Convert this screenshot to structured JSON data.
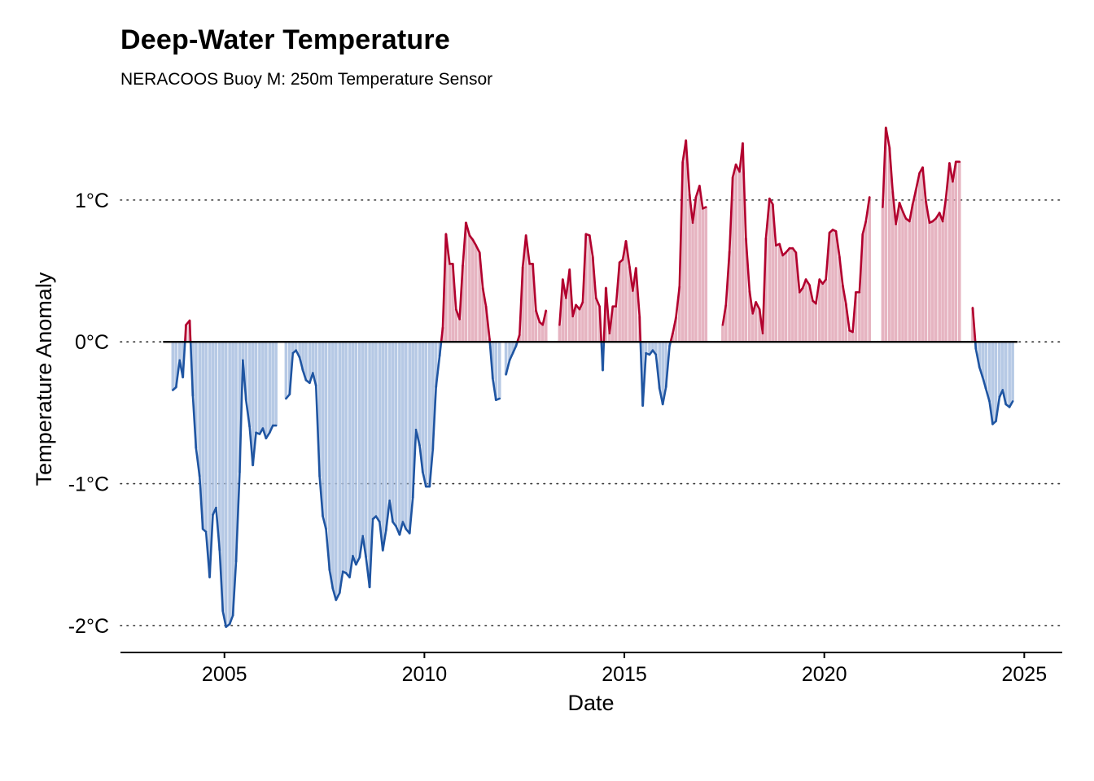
{
  "title": "Deep-Water Temperature",
  "subtitle": "NERACOOS Buoy M: 250m Temperature Sensor",
  "colors": {
    "above": "#b2002e",
    "below": "#1f55a2",
    "above_fill": "#e2a7b6",
    "below_fill": "#a9c0e0",
    "zero_line": "#000000",
    "grid": "#333333"
  },
  "chart_data": {
    "type": "area",
    "title": "Deep-Water Temperature",
    "subtitle": "NERACOOS Buoy M: 250m Temperature Sensor",
    "xlabel": "Date",
    "ylabel": "Temperature Anomaly",
    "x_unit": "decimal year",
    "xlim": [
      2002.4,
      2025.95
    ],
    "ylim": [
      -2.19,
      1.55
    ],
    "x_ticks": [
      2005,
      2010,
      2015,
      2020,
      2025
    ],
    "x_tick_labels": [
      "2005",
      "2010",
      "2015",
      "2020",
      "2025"
    ],
    "y_ticks": [
      -2,
      -1,
      0,
      1
    ],
    "y_tick_labels": [
      "-2°C",
      "-1°C",
      "0°C",
      "1°C"
    ],
    "grid": "horizontal dotted",
    "legend": "none",
    "segments": [
      {
        "x": [
          2003.71,
          2003.79,
          2003.88,
          2003.96,
          2004.04,
          2004.13,
          2004.21,
          2004.29,
          2004.38,
          2004.46,
          2004.54,
          2004.63,
          2004.71,
          2004.79,
          2004.88,
          2004.96,
          2005.04,
          2005.13,
          2005.21,
          2005.29,
          2005.38,
          2005.46,
          2005.54,
          2005.63,
          2005.71,
          2005.79,
          2005.88,
          2005.96,
          2006.04,
          2006.13,
          2006.21,
          2006.29
        ],
        "y": [
          -0.34,
          -0.32,
          -0.13,
          -0.25,
          0.12,
          0.15,
          -0.38,
          -0.75,
          -0.95,
          -1.32,
          -1.34,
          -1.66,
          -1.22,
          -1.17,
          -1.47,
          -1.9,
          -2.01,
          -1.99,
          -1.93,
          -1.55,
          -0.92,
          -0.13,
          -0.41,
          -0.6,
          -0.87,
          -0.64,
          -0.65,
          -0.61,
          -0.68,
          -0.64,
          -0.59,
          -0.59
        ]
      },
      {
        "x": [
          2006.54,
          2006.63,
          2006.71,
          2006.79,
          2006.88,
          2006.96,
          2007.04,
          2007.13,
          2007.21,
          2007.29,
          2007.38,
          2007.46,
          2007.54,
          2007.63,
          2007.71,
          2007.79,
          2007.88,
          2007.96,
          2008.04,
          2008.13,
          2008.21,
          2008.29,
          2008.38,
          2008.46,
          2008.54,
          2008.63,
          2008.71,
          2008.79,
          2008.88,
          2008.96,
          2009.04,
          2009.13,
          2009.21,
          2009.29,
          2009.38,
          2009.46,
          2009.54,
          2009.63,
          2009.71,
          2009.79,
          2009.88,
          2009.96,
          2010.04,
          2010.13,
          2010.21,
          2010.29,
          2010.38,
          2010.46,
          2010.54,
          2010.63,
          2010.71,
          2010.79,
          2010.88,
          2010.96,
          2011.04,
          2011.13,
          2011.21,
          2011.29,
          2011.38,
          2011.46,
          2011.54,
          2011.63,
          2011.71,
          2011.79,
          2011.88
        ],
        "y": [
          -0.4,
          -0.37,
          -0.08,
          -0.06,
          -0.11,
          -0.2,
          -0.27,
          -0.29,
          -0.22,
          -0.31,
          -0.95,
          -1.23,
          -1.32,
          -1.61,
          -1.74,
          -1.82,
          -1.77,
          -1.62,
          -1.63,
          -1.66,
          -1.51,
          -1.57,
          -1.52,
          -1.37,
          -1.52,
          -1.73,
          -1.25,
          -1.23,
          -1.27,
          -1.47,
          -1.33,
          -1.12,
          -1.27,
          -1.3,
          -1.36,
          -1.27,
          -1.32,
          -1.35,
          -1.1,
          -0.62,
          -0.73,
          -0.92,
          -1.02,
          -1.02,
          -0.76,
          -0.32,
          -0.1,
          0.1,
          0.76,
          0.55,
          0.55,
          0.23,
          0.16,
          0.54,
          0.84,
          0.75,
          0.72,
          0.68,
          0.63,
          0.38,
          0.25,
          0.02,
          -0.26,
          -0.41,
          -0.4
        ]
      },
      {
        "x": [
          2012.04,
          2012.13,
          2012.21,
          2012.29,
          2012.38,
          2012.46,
          2012.54,
          2012.63,
          2012.71,
          2012.79,
          2012.88,
          2012.96,
          2013.04,
          2013.13
        ],
        "y": [
          -0.23,
          -0.13,
          -0.08,
          -0.03,
          0.05,
          0.53,
          0.75,
          0.55,
          0.55,
          0.22,
          0.14,
          0.12,
          0.22,
          null
        ]
      },
      {
        "x": [
          2013.38,
          2013.46,
          2013.54,
          2013.63,
          2013.71,
          2013.79,
          2013.88,
          2013.96,
          2014.04,
          2014.13,
          2014.21,
          2014.29,
          2014.38,
          2014.46,
          2014.54,
          2014.63,
          2014.71,
          2014.79,
          2014.88,
          2014.96,
          2015.04,
          2015.13,
          2015.21,
          2015.29,
          2015.38,
          2015.46,
          2015.54,
          2015.63,
          2015.71,
          2015.79,
          2015.88,
          2015.96,
          2016.04,
          2016.13,
          2016.21,
          2016.29,
          2016.38,
          2016.46,
          2016.54,
          2016.63,
          2016.71,
          2016.79,
          2016.88,
          2016.96,
          2017.04,
          2017.13
        ],
        "y": [
          0.12,
          0.44,
          0.31,
          0.51,
          0.18,
          0.26,
          0.23,
          0.28,
          0.76,
          0.75,
          0.6,
          0.31,
          0.25,
          -0.2,
          0.38,
          0.06,
          0.25,
          0.25,
          0.56,
          0.58,
          0.71,
          0.53,
          0.36,
          0.52,
          0.18,
          -0.45,
          -0.08,
          -0.09,
          -0.06,
          -0.09,
          -0.33,
          -0.44,
          -0.32,
          -0.03,
          0.06,
          0.17,
          0.39,
          1.27,
          1.42,
          1.04,
          0.84,
          1.02,
          1.1,
          0.94,
          0.95,
          null
        ]
      },
      {
        "x": [
          2017.46,
          2017.54,
          2017.63,
          2017.71,
          2017.79,
          2017.88,
          2017.96,
          2018.04,
          2018.13,
          2018.21,
          2018.29,
          2018.38,
          2018.46,
          2018.54,
          2018.63,
          2018.71,
          2018.79,
          2018.88,
          2018.96,
          2019.04,
          2019.13,
          2019.21,
          2019.29,
          2019.38,
          2019.46,
          2019.54,
          2019.63,
          2019.71,
          2019.79,
          2019.88,
          2019.96,
          2020.04,
          2020.13,
          2020.21,
          2020.29,
          2020.38,
          2020.46,
          2020.54,
          2020.63,
          2020.71,
          2020.79,
          2020.88,
          2020.96,
          2021.04,
          2021.13,
          2021.21,
          2021.29
        ],
        "y": [
          0.12,
          0.26,
          0.64,
          1.16,
          1.25,
          1.2,
          1.4,
          0.73,
          0.36,
          0.2,
          0.28,
          0.23,
          0.06,
          0.73,
          1.01,
          0.97,
          0.68,
          0.69,
          0.61,
          0.63,
          0.66,
          0.66,
          0.63,
          0.35,
          0.38,
          0.44,
          0.4,
          0.29,
          0.27,
          0.44,
          0.41,
          0.44,
          0.77,
          0.79,
          0.78,
          0.6,
          0.4,
          0.27,
          0.08,
          0.07,
          0.35,
          0.35,
          0.76,
          0.85,
          1.02,
          null,
          null
        ]
      },
      {
        "x": [
          2021.46,
          2021.54,
          2021.63,
          2021.71,
          2021.79,
          2021.88,
          2021.96,
          2022.04,
          2022.13,
          2022.21,
          2022.29,
          2022.38,
          2022.46,
          2022.54,
          2022.63,
          2022.71,
          2022.79,
          2022.88,
          2022.96,
          2023.04,
          2023.13,
          2023.21,
          2023.29,
          2023.38
        ],
        "y": [
          0.95,
          1.51,
          1.37,
          1.06,
          0.83,
          0.98,
          0.92,
          0.87,
          0.85,
          0.97,
          1.07,
          1.19,
          1.23,
          0.99,
          0.84,
          0.85,
          0.87,
          0.91,
          0.85,
          1.01,
          1.26,
          1.13,
          1.27,
          1.27
        ]
      },
      {
        "x": [
          2023.71,
          2023.79,
          2023.88,
          2023.96,
          2024.04,
          2024.13,
          2024.21,
          2024.29,
          2024.38,
          2024.46,
          2024.54,
          2024.63,
          2024.71
        ],
        "y": [
          0.24,
          -0.05,
          -0.18,
          -0.25,
          -0.33,
          -0.42,
          -0.58,
          -0.56,
          -0.39,
          -0.34,
          -0.44,
          -0.46,
          -0.42
        ]
      }
    ]
  }
}
